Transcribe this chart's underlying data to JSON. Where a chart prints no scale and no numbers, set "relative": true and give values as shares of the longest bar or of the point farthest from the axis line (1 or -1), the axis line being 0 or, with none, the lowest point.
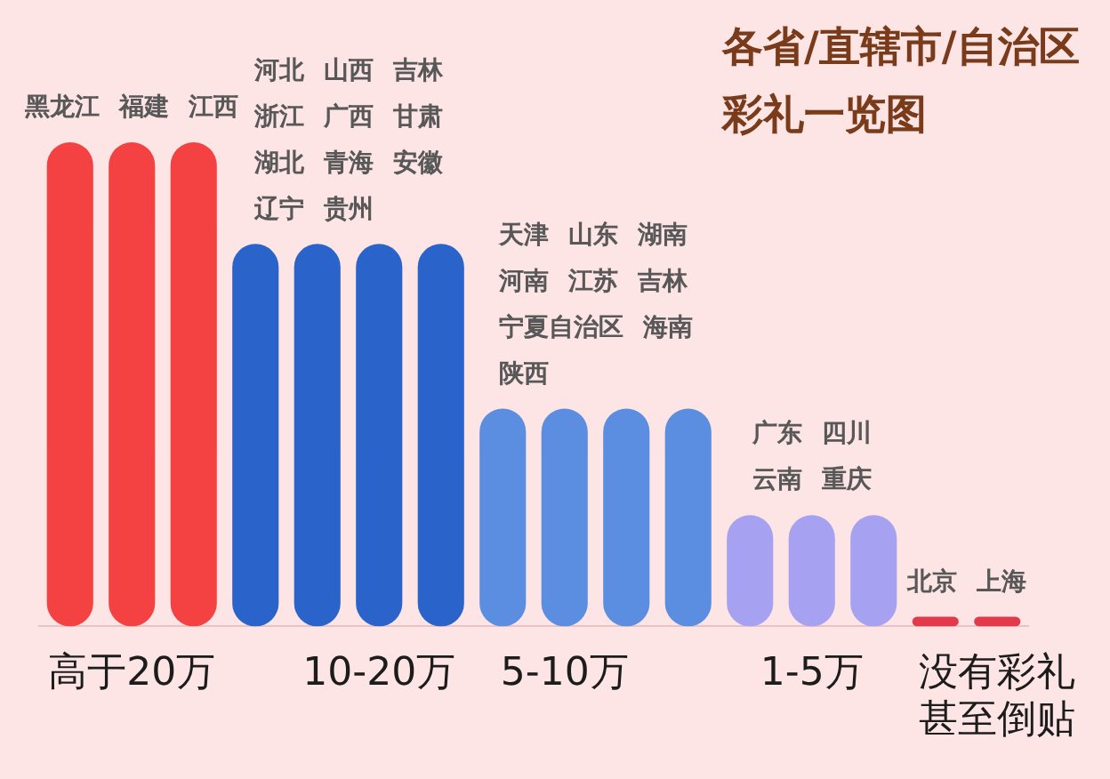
{
  "chart_data": {
    "type": "bar",
    "title": "各省/直辖市/自治区彩礼一览图",
    "relative": true,
    "categories": [
      null,
      "高于20万",
      null,
      null,
      null,
      "10-20万",
      null,
      null,
      "5-10万",
      null,
      null,
      null,
      "1-5万",
      null,
      null,
      "没有彩礼甚至倒贴"
    ],
    "values": [
      1,
      1,
      1,
      0.79,
      0.79,
      0.79,
      0.79,
      0.45,
      0.45,
      0.45,
      0.45,
      0.23,
      0.23,
      0.23,
      0.02,
      0.02
    ],
    "colors": [
      "#f44242",
      "#f44242",
      "#f44242",
      "#2a63c9",
      "#2a63c9",
      "#2a63c9",
      "#2a63c9",
      "#5b8ee0",
      "#5b8ee0",
      "#5b8ee0",
      "#5b8ee0",
      "#a7a1f1",
      "#a7a1f1",
      "#a7a1f1",
      "#e23a4a",
      "#e23a4a"
    ],
    "annotations": [
      "黑龙江 福建 江西",
      "河北 山西 吉林",
      "浙江 广西 甘肃",
      "湖北 青海 安徽",
      "辽宁 贵州",
      "天津 山东 湖南",
      "河南 江苏 吉林",
      "宁夏自治区 海南",
      "陕西",
      "广东 四川",
      "云南 重庆",
      "北京 上海"
    ]
  }
}
